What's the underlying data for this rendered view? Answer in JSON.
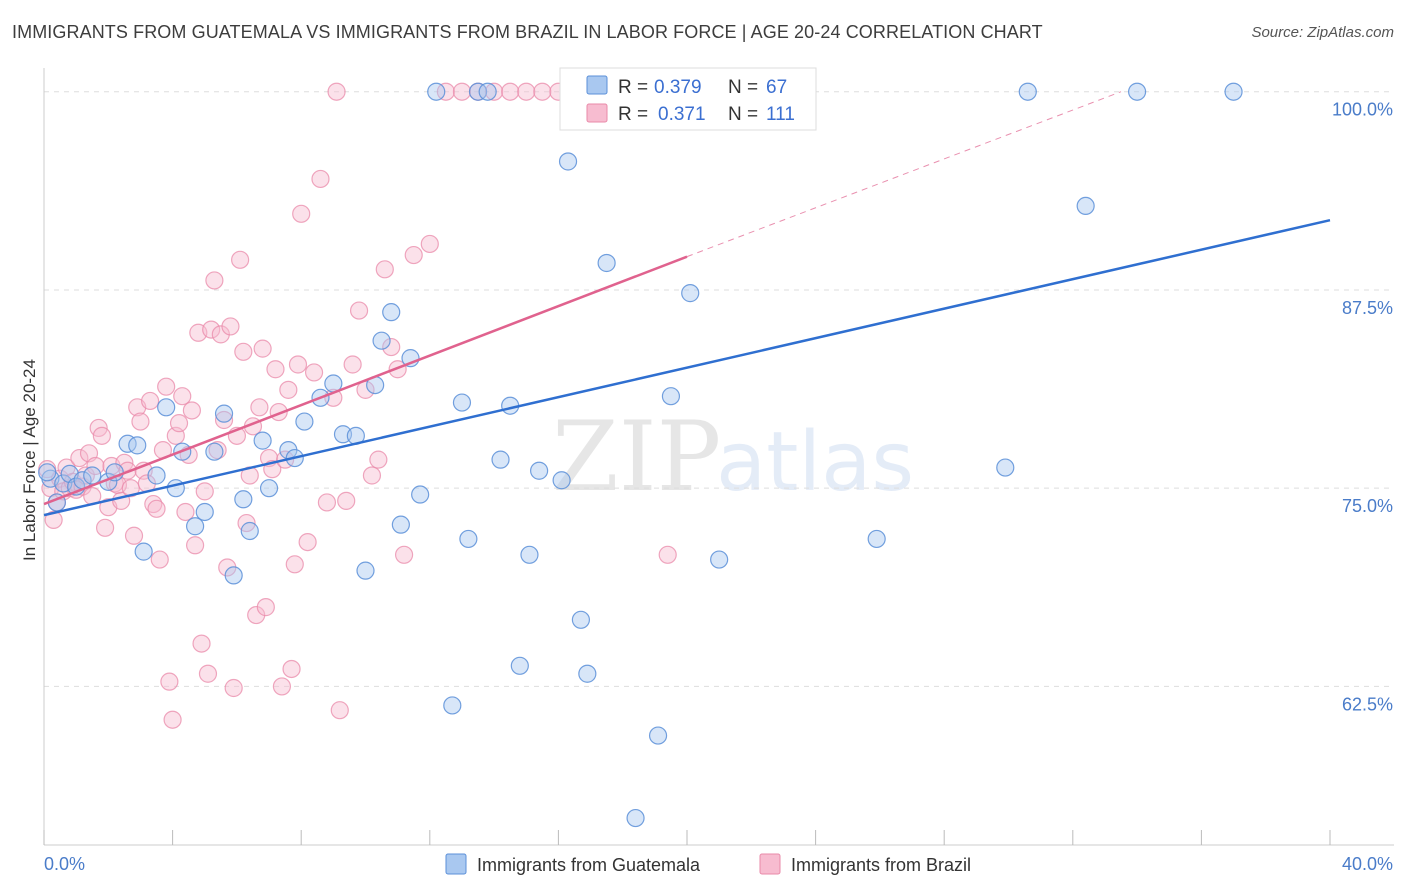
{
  "header": {
    "title": "IMMIGRANTS FROM GUATEMALA VS IMMIGRANTS FROM BRAZIL IN LABOR FORCE | AGE 20-24 CORRELATION CHART",
    "source": "Source: ZipAtlas.com"
  },
  "watermark": {
    "zip": "ZIP",
    "atlas": "atlas"
  },
  "stats": {
    "r_label": "R =",
    "n_label": "N =",
    "rows": [
      {
        "r": "0.379",
        "n": "67"
      },
      {
        "r": "0.371",
        "n": "111"
      }
    ]
  },
  "colors": {
    "guatemala_fill": "#a9c8f0",
    "guatemala_stroke": "#5b8fd8",
    "guatemala_line": "#2f6fd0",
    "brazil_fill": "#f7bcd0",
    "brazil_stroke": "#e98aa9",
    "brazil_line": "#e0628e",
    "tick_text": "#4a7cc9",
    "grid": "#dddddd"
  },
  "chart_data": {
    "type": "scatter",
    "title": "IMMIGRANTS FROM GUATEMALA VS IMMIGRANTS FROM BRAZIL IN LABOR FORCE | AGE 20-24 CORRELATION CHART",
    "xlabel": "",
    "ylabel": "In Labor Force | Age 20-24",
    "xlim": [
      0,
      40
    ],
    "ylim": [
      52.5,
      102
    ],
    "x_tick_labels": [
      "0.0%",
      "40.0%"
    ],
    "y_ticks": [
      62.5,
      75.0,
      87.5,
      100.0
    ],
    "y_tick_labels": [
      "62.5%",
      "75.0%",
      "87.5%",
      "100.0%"
    ],
    "grid": true,
    "legend_position": "bottom",
    "series": [
      {
        "name": "Immigrants from Guatemala",
        "r": 0.379,
        "n": 67,
        "trend": {
          "x": [
            0,
            40
          ],
          "y": [
            73.3,
            91.9
          ]
        },
        "points": [
          [
            0.2,
            75.6
          ],
          [
            0.4,
            74.1
          ],
          [
            0.6,
            75.3
          ],
          [
            0.8,
            75.9
          ],
          [
            1.0,
            75.1
          ],
          [
            1.2,
            75.5
          ],
          [
            1.5,
            75.8
          ],
          [
            2.0,
            75.4
          ],
          [
            2.2,
            76.0
          ],
          [
            2.6,
            77.8
          ],
          [
            2.9,
            77.7
          ],
          [
            3.1,
            71.0
          ],
          [
            3.5,
            75.8
          ],
          [
            3.8,
            80.1
          ],
          [
            4.1,
            75.0
          ],
          [
            4.3,
            77.3
          ],
          [
            4.7,
            72.6
          ],
          [
            5.0,
            73.5
          ],
          [
            5.3,
            77.3
          ],
          [
            5.6,
            79.7
          ],
          [
            5.9,
            69.5
          ],
          [
            6.2,
            74.3
          ],
          [
            6.4,
            72.3
          ],
          [
            6.8,
            78.0
          ],
          [
            7.0,
            75.0
          ],
          [
            7.6,
            77.4
          ],
          [
            7.8,
            76.9
          ],
          [
            8.1,
            79.2
          ],
          [
            8.6,
            80.7
          ],
          [
            9.0,
            81.6
          ],
          [
            9.3,
            78.4
          ],
          [
            9.7,
            78.3
          ],
          [
            10.0,
            69.8
          ],
          [
            10.3,
            81.5
          ],
          [
            10.5,
            84.3
          ],
          [
            10.8,
            86.1
          ],
          [
            11.1,
            72.7
          ],
          [
            11.4,
            83.2
          ],
          [
            11.7,
            74.6
          ],
          [
            12.2,
            100.0
          ],
          [
            12.7,
            61.3
          ],
          [
            13.0,
            80.4
          ],
          [
            13.2,
            71.8
          ],
          [
            13.5,
            100.0
          ],
          [
            13.8,
            100.0
          ],
          [
            14.2,
            76.8
          ],
          [
            14.5,
            80.2
          ],
          [
            14.8,
            63.8
          ],
          [
            15.1,
            70.8
          ],
          [
            15.4,
            76.1
          ],
          [
            16.1,
            75.5
          ],
          [
            16.3,
            95.6
          ],
          [
            16.7,
            66.7
          ],
          [
            16.9,
            63.3
          ],
          [
            17.5,
            89.2
          ],
          [
            18.4,
            54.2
          ],
          [
            19.1,
            59.4
          ],
          [
            19.5,
            80.8
          ],
          [
            20.1,
            87.3
          ],
          [
            21.0,
            70.5
          ],
          [
            25.9,
            71.8
          ],
          [
            29.9,
            76.3
          ],
          [
            30.6,
            100.0
          ],
          [
            32.4,
            92.8
          ],
          [
            34.0,
            100.0
          ],
          [
            37.0,
            100.0
          ],
          [
            0.1,
            76.0
          ]
        ]
      },
      {
        "name": "Immigrants from Brazil",
        "r": 0.371,
        "n": 111,
        "trend": {
          "x": [
            0,
            20
          ],
          "y": [
            74.0,
            89.6
          ]
        },
        "trend_dashed": {
          "x": [
            20,
            33.5
          ],
          "y": [
            89.6,
            100.0
          ]
        },
        "points": [
          [
            0.1,
            76.2
          ],
          [
            0.2,
            75.0
          ],
          [
            0.3,
            73.0
          ],
          [
            0.4,
            74.1
          ],
          [
            0.5,
            75.6
          ],
          [
            0.6,
            74.8
          ],
          [
            0.7,
            76.3
          ],
          [
            0.8,
            75.0
          ],
          [
            0.9,
            75.4
          ],
          [
            1.0,
            74.9
          ],
          [
            1.1,
            76.9
          ],
          [
            1.2,
            75.1
          ],
          [
            1.3,
            75.8
          ],
          [
            1.4,
            77.2
          ],
          [
            1.5,
            74.5
          ],
          [
            1.6,
            76.4
          ],
          [
            1.7,
            78.8
          ],
          [
            1.8,
            78.3
          ],
          [
            1.9,
            72.5
          ],
          [
            2.0,
            73.8
          ],
          [
            2.1,
            76.4
          ],
          [
            2.2,
            75.3
          ],
          [
            2.3,
            75.2
          ],
          [
            2.4,
            74.2
          ],
          [
            2.5,
            76.6
          ],
          [
            2.6,
            76.1
          ],
          [
            2.7,
            75.0
          ],
          [
            2.8,
            72.0
          ],
          [
            2.9,
            80.1
          ],
          [
            3.0,
            79.2
          ],
          [
            3.1,
            76.1
          ],
          [
            3.2,
            75.3
          ],
          [
            3.3,
            80.5
          ],
          [
            3.4,
            74.0
          ],
          [
            3.5,
            73.7
          ],
          [
            3.6,
            70.5
          ],
          [
            3.7,
            77.4
          ],
          [
            3.8,
            81.4
          ],
          [
            3.9,
            62.8
          ],
          [
            4.0,
            60.4
          ],
          [
            4.1,
            78.3
          ],
          [
            4.2,
            79.1
          ],
          [
            4.3,
            80.8
          ],
          [
            4.4,
            73.5
          ],
          [
            4.5,
            77.1
          ],
          [
            4.6,
            79.9
          ],
          [
            4.7,
            71.4
          ],
          [
            4.8,
            84.8
          ],
          [
            4.9,
            65.2
          ],
          [
            5.0,
            74.8
          ],
          [
            5.1,
            63.3
          ],
          [
            5.2,
            85.0
          ],
          [
            5.3,
            88.1
          ],
          [
            5.4,
            77.4
          ],
          [
            5.5,
            84.7
          ],
          [
            5.6,
            79.3
          ],
          [
            5.7,
            70.0
          ],
          [
            5.8,
            85.2
          ],
          [
            5.9,
            62.4
          ],
          [
            6.0,
            78.3
          ],
          [
            6.1,
            89.4
          ],
          [
            6.2,
            83.6
          ],
          [
            6.3,
            72.8
          ],
          [
            6.4,
            75.8
          ],
          [
            6.5,
            78.9
          ],
          [
            6.6,
            67.0
          ],
          [
            6.7,
            80.1
          ],
          [
            6.8,
            83.8
          ],
          [
            6.9,
            67.5
          ],
          [
            7.0,
            76.9
          ],
          [
            7.1,
            76.2
          ],
          [
            7.2,
            82.5
          ],
          [
            7.3,
            79.8
          ],
          [
            7.4,
            62.5
          ],
          [
            7.5,
            76.8
          ],
          [
            7.6,
            81.2
          ],
          [
            7.7,
            63.6
          ],
          [
            7.8,
            70.2
          ],
          [
            7.9,
            82.8
          ],
          [
            8.0,
            92.3
          ],
          [
            8.2,
            71.6
          ],
          [
            8.4,
            82.3
          ],
          [
            8.6,
            94.5
          ],
          [
            8.8,
            74.1
          ],
          [
            9.0,
            80.7
          ],
          [
            9.2,
            61.0
          ],
          [
            9.4,
            74.2
          ],
          [
            9.6,
            82.8
          ],
          [
            9.8,
            86.2
          ],
          [
            10.0,
            81.2
          ],
          [
            10.2,
            75.8
          ],
          [
            10.4,
            76.8
          ],
          [
            10.6,
            88.8
          ],
          [
            10.8,
            83.9
          ],
          [
            11.0,
            82.5
          ],
          [
            11.2,
            70.8
          ],
          [
            11.5,
            89.7
          ],
          [
            12.0,
            90.4
          ],
          [
            12.5,
            100.0
          ],
          [
            13.0,
            100.0
          ],
          [
            13.5,
            100.0
          ],
          [
            14.0,
            100.0
          ],
          [
            14.5,
            100.0
          ],
          [
            15.0,
            100.0
          ],
          [
            15.5,
            100.0
          ],
          [
            16.0,
            100.0
          ],
          [
            16.5,
            100.0
          ],
          [
            17.0,
            100.0
          ],
          [
            17.5,
            100.0
          ],
          [
            19.4,
            70.8
          ],
          [
            9.1,
            100.0
          ]
        ]
      }
    ]
  },
  "legend": {
    "items": [
      {
        "label": "Immigrants from Guatemala"
      },
      {
        "label": "Immigrants from Brazil"
      }
    ]
  }
}
